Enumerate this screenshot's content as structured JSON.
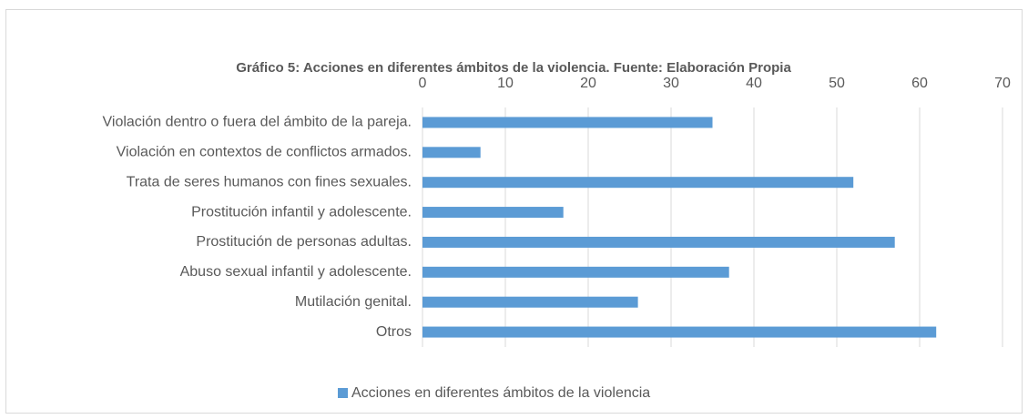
{
  "chart_data": {
    "type": "bar",
    "orientation": "horizontal",
    "title": "Gráfico 5: Acciones en diferentes ámbitos de la violencia. Fuente: Elaboración Propia",
    "categories": [
      "Violación dentro o fuera del ámbito de la pareja.",
      "Violación en contextos de conflictos armados.",
      "Trata de seres humanos con fines sexuales.",
      "Prostitución infantil y adolescente.",
      "Prostitución de personas adultas.",
      "Abuso sexual infantil y adolescente.",
      "Mutilación genital.",
      "Otros"
    ],
    "series": [
      {
        "name": "Acciones en diferentes ámbitos de la violencia",
        "color": "#5b9bd5",
        "values": [
          35,
          7,
          52,
          17,
          57,
          37,
          26,
          62
        ]
      }
    ],
    "xlim": [
      0,
      70
    ],
    "xticks": [
      0,
      10,
      20,
      30,
      40,
      50,
      60,
      70
    ],
    "grid": true,
    "legend": "bottom"
  }
}
